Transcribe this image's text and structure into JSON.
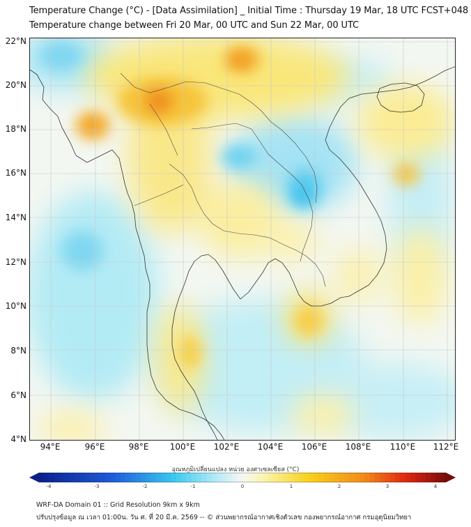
{
  "title": {
    "line1": "Temperature Change (°C) - [Data Assimilation] _ Initial Time : Thursday 19 Mar, 18 UTC FCST+048",
    "line2": "Temperature change between Fri 20 Mar, 00 UTC and Sun 22 Mar, 00 UTC"
  },
  "axes": {
    "lat_labels": [
      "22°N",
      "20°N",
      "18°N",
      "16°N",
      "14°N",
      "12°N",
      "10°N",
      "8°N",
      "6°N",
      "4°N"
    ],
    "lon_labels": [
      "94°E",
      "96°E",
      "98°E",
      "100°E",
      "102°E",
      "104°E",
      "106°E",
      "108°E",
      "110°E",
      "112°E"
    ]
  },
  "colorbar": {
    "title": "อุณหภูมิเปลี่ยนแปลง หน่วย องศาเซลเซียส (°C)",
    "ticks": [
      "-4",
      "-3",
      "-2",
      "-1",
      "0",
      "1",
      "2",
      "3",
      "4"
    ],
    "min": -4,
    "max": 4,
    "colors": {
      "deep_blue": "#0b1f8a",
      "blue": "#1e5bd8",
      "cyan": "#38c8ee",
      "light_cyan": "#b8ecf6",
      "white": "#f7f7f2",
      "light_yellow": "#fbf3a6",
      "yellow": "#f8d21e",
      "orange": "#f28a18",
      "red": "#e02812",
      "dark_red": "#7a0c08"
    }
  },
  "footer": {
    "line1": "WRF-DA Domain 01 :: Grid Resolution 9km x 9km",
    "line2": "ปรับปรุงข้อมูล ณ เวลา 01:00น. วัน ศ. ที่ 20 มี.ค. 2569 -- © ส่วนพยากรณ์อากาศเชิงตัวเลข กองพยากรณ์อากาศ กรมอุตุนิยมวิทยา"
  }
}
